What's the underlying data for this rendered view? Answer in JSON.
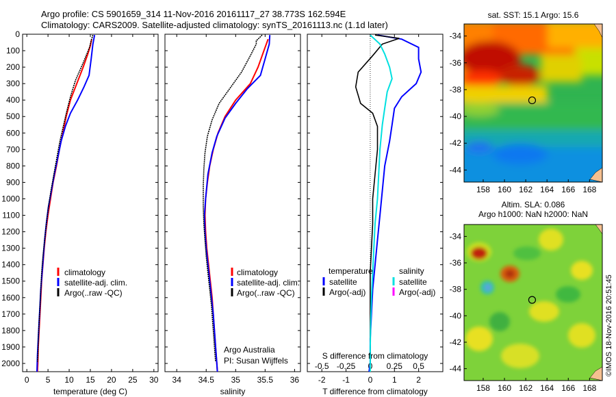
{
  "header": {
    "line1": "Argo profile: CS 5901659_314 11-Nov-2016 20161117_27 38.773S 162.594E",
    "line2": "Climatology: CARS2009. Satellite-adjusted climatology: synTS_20161113.nc (1.1d later)"
  },
  "colors": {
    "climatology": "#ff0000",
    "satellite": "#0000ff",
    "argo": "#000000",
    "sat_salinity": "#00e0e0",
    "argo_salinity": "#ff00ff"
  },
  "credit": {
    "line1": "Argo Australia",
    "line2": "PI: Susan Wijffels"
  },
  "timestamp": "©IMOS 18-Nov-2016 20:51:45",
  "chart_data": [
    {
      "type": "line",
      "xlabel": "temperature (deg C)",
      "ylim": [
        0,
        2050
      ],
      "xlim": [
        -1,
        31
      ],
      "xticks": [
        0,
        5,
        10,
        15,
        20,
        25,
        30
      ],
      "yticks": [
        0,
        100,
        200,
        300,
        400,
        500,
        600,
        700,
        800,
        900,
        1000,
        1100,
        1200,
        1300,
        1400,
        1500,
        1600,
        1700,
        1800,
        1900,
        2000
      ],
      "legend": [
        "climatology",
        "satellite-adj. clim.",
        "Argo(..raw -QC)"
      ],
      "series": [
        {
          "name": "climatology",
          "color": "#ff0000",
          "points": [
            [
              15.3,
              30
            ],
            [
              15.0,
              70
            ],
            [
              14.4,
              120
            ],
            [
              13.3,
              200
            ],
            [
              11.8,
              300
            ],
            [
              10.3,
              400
            ],
            [
              9.3,
              500
            ],
            [
              8.5,
              600
            ],
            [
              7.7,
              700
            ],
            [
              7.0,
              800
            ],
            [
              6.2,
              900
            ],
            [
              5.6,
              1000
            ],
            [
              5.0,
              1100
            ],
            [
              4.5,
              1200
            ],
            [
              4.1,
              1300
            ],
            [
              3.8,
              1400
            ],
            [
              3.5,
              1500
            ],
            [
              3.3,
              1600
            ],
            [
              3.1,
              1700
            ],
            [
              2.9,
              1800
            ],
            [
              2.7,
              1900
            ],
            [
              2.6,
              2000
            ],
            [
              2.5,
              2050
            ]
          ]
        },
        {
          "name": "satellite-adj. clim.",
          "color": "#0000ff",
          "points": [
            [
              16.0,
              5
            ],
            [
              15.6,
              60
            ],
            [
              15.2,
              150
            ],
            [
              14.7,
              250
            ],
            [
              13.5,
              320
            ],
            [
              12.0,
              400
            ],
            [
              10.3,
              480
            ],
            [
              9.1,
              560
            ],
            [
              8.1,
              650
            ],
            [
              7.3,
              750
            ],
            [
              6.5,
              850
            ],
            [
              5.8,
              950
            ],
            [
              5.1,
              1050
            ],
            [
              4.6,
              1150
            ],
            [
              4.2,
              1250
            ],
            [
              3.9,
              1350
            ],
            [
              3.6,
              1450
            ],
            [
              3.3,
              1550
            ],
            [
              3.1,
              1650
            ],
            [
              2.9,
              1750
            ],
            [
              2.7,
              1850
            ],
            [
              2.5,
              1950
            ],
            [
              2.4,
              2050
            ]
          ]
        },
        {
          "name": "Argo(..raw -QC)",
          "color": "#000000",
          "points": [
            [
              15.6,
              5
            ],
            [
              15.2,
              40
            ],
            [
              14.8,
              80
            ],
            [
              13.2,
              180
            ],
            [
              11.5,
              280
            ],
            [
              10.3,
              380
            ],
            [
              9.4,
              470
            ],
            [
              8.6,
              560
            ],
            [
              7.8,
              650
            ],
            [
              7.1,
              750
            ],
            [
              6.4,
              850
            ],
            [
              5.7,
              950
            ],
            [
              5.1,
              1050
            ],
            [
              4.6,
              1150
            ],
            [
              4.2,
              1250
            ],
            [
              3.8,
              1350
            ],
            [
              3.5,
              1450
            ],
            [
              3.3,
              1550
            ],
            [
              3.1,
              1650
            ],
            [
              2.9,
              1750
            ],
            [
              2.7,
              1850
            ],
            [
              2.6,
              1950
            ],
            [
              2.5,
              1990
            ]
          ]
        }
      ]
    },
    {
      "type": "line",
      "xlabel": "salinity",
      "ylim": [
        0,
        2050
      ],
      "xlim": [
        33.8,
        36.1
      ],
      "xticks": [
        34,
        34.5,
        35,
        35.5,
        36
      ],
      "legend": [
        "climatology",
        "satellite-adj. clim.",
        "Argo(..raw -QC)"
      ],
      "series": [
        {
          "name": "climatology",
          "color": "#ff0000",
          "points": [
            [
              35.55,
              30
            ],
            [
              35.48,
              100
            ],
            [
              35.38,
              200
            ],
            [
              35.25,
              300
            ],
            [
              35.0,
              400
            ],
            [
              34.82,
              500
            ],
            [
              34.7,
              600
            ],
            [
              34.62,
              700
            ],
            [
              34.56,
              800
            ],
            [
              34.52,
              900
            ],
            [
              34.49,
              1000
            ],
            [
              34.48,
              1100
            ],
            [
              34.49,
              1200
            ],
            [
              34.51,
              1300
            ],
            [
              34.54,
              1400
            ],
            [
              34.57,
              1500
            ],
            [
              34.6,
              1600
            ],
            [
              34.62,
              1700
            ],
            [
              34.64,
              1800
            ],
            [
              34.66,
              1900
            ],
            [
              34.68,
              2000
            ],
            [
              34.69,
              2050
            ]
          ]
        },
        {
          "name": "satellite-adj. clim.",
          "color": "#0000ff",
          "points": [
            [
              35.58,
              5
            ],
            [
              35.57,
              60
            ],
            [
              35.5,
              150
            ],
            [
              35.42,
              250
            ],
            [
              35.2,
              330
            ],
            [
              35.0,
              420
            ],
            [
              34.82,
              510
            ],
            [
              34.68,
              620
            ],
            [
              34.6,
              720
            ],
            [
              34.53,
              850
            ],
            [
              34.49,
              1000
            ],
            [
              34.47,
              1100
            ],
            [
              34.48,
              1200
            ],
            [
              34.5,
              1300
            ],
            [
              34.53,
              1400
            ],
            [
              34.56,
              1500
            ],
            [
              34.59,
              1600
            ],
            [
              34.62,
              1700
            ],
            [
              34.64,
              1800
            ],
            [
              34.66,
              1900
            ],
            [
              34.68,
              2000
            ],
            [
              34.69,
              2050
            ]
          ]
        },
        {
          "name": "Argo(..raw -QC)",
          "color": "#000000",
          "points": [
            [
              35.45,
              5
            ],
            [
              35.35,
              40
            ],
            [
              35.35,
              60
            ],
            [
              35.25,
              130
            ],
            [
              35.1,
              230
            ],
            [
              34.9,
              330
            ],
            [
              34.72,
              420
            ],
            [
              34.6,
              520
            ],
            [
              34.52,
              620
            ],
            [
              34.48,
              720
            ],
            [
              34.46,
              820
            ],
            [
              34.45,
              920
            ],
            [
              34.45,
              1050
            ],
            [
              34.46,
              1150
            ],
            [
              34.48,
              1250
            ],
            [
              34.5,
              1350
            ],
            [
              34.53,
              1450
            ],
            [
              34.56,
              1550
            ],
            [
              34.59,
              1650
            ],
            [
              34.61,
              1750
            ],
            [
              34.63,
              1850
            ],
            [
              34.65,
              1950
            ],
            [
              34.66,
              1990
            ]
          ]
        }
      ]
    },
    {
      "type": "line",
      "xlabel": "T difference from climatology",
      "xlabel_top": "S difference from climatology",
      "ylim": [
        0,
        2050
      ],
      "xlim": [
        -2.6,
        3
      ],
      "xticks": [
        -2,
        -1,
        0,
        1,
        2
      ],
      "xticks_top": [
        "-0.5",
        "-0.25",
        "0",
        "0.25",
        "0.5"
      ],
      "legend_temperature_title": "temperature",
      "legend_salinity_title": "salinity",
      "legend_temperature": [
        "satellite",
        "Argo(-adj)"
      ],
      "legend_salinity": [
        "satellite",
        "Argo(-adj)"
      ],
      "series": [
        {
          "name": "temperature satellite",
          "color": "#0000ff",
          "points": [
            [
              0.3,
              5
            ],
            [
              1.3,
              30
            ],
            [
              2.0,
              80
            ],
            [
              2.0,
              150
            ],
            [
              2.1,
              230
            ],
            [
              1.9,
              300
            ],
            [
              1.3,
              380
            ],
            [
              1.0,
              450
            ],
            [
              0.9,
              550
            ],
            [
              0.8,
              650
            ],
            [
              0.6,
              800
            ],
            [
              0.5,
              950
            ],
            [
              0.4,
              1100
            ],
            [
              0.3,
              1250
            ],
            [
              0.2,
              1400
            ],
            [
              0.1,
              1550
            ],
            [
              0.05,
              1700
            ],
            [
              0.0,
              1850
            ],
            [
              0.0,
              2000
            ],
            [
              -0.05,
              2050
            ]
          ]
        },
        {
          "name": "temperature Argo(-adj)",
          "color": "#000000",
          "points": [
            [
              0.2,
              5
            ],
            [
              1.2,
              25
            ],
            [
              0.5,
              60
            ],
            [
              0.1,
              130
            ],
            [
              -0.5,
              230
            ],
            [
              -0.6,
              320
            ],
            [
              -0.4,
              420
            ],
            [
              0.1,
              480
            ],
            [
              0.3,
              560
            ],
            [
              0.3,
              700
            ],
            [
              0.2,
              850
            ],
            [
              0.1,
              1000
            ],
            [
              0.1,
              1150
            ],
            [
              0.05,
              1300
            ],
            [
              0.0,
              1450
            ],
            [
              0.0,
              1600
            ],
            [
              0.0,
              1750
            ],
            [
              0.0,
              1900
            ],
            [
              0.0,
              1990
            ]
          ]
        },
        {
          "name": "salinity satellite",
          "color": "#00e0e0",
          "points": [
            [
              0.0,
              5
            ],
            [
              0.4,
              60
            ],
            [
              0.6,
              120
            ],
            [
              0.8,
              200
            ],
            [
              0.9,
              270
            ],
            [
              0.7,
              350
            ],
            [
              0.6,
              450
            ],
            [
              0.5,
              550
            ],
            [
              0.4,
              700
            ],
            [
              0.35,
              850
            ],
            [
              0.3,
              1000
            ],
            [
              0.2,
              1150
            ],
            [
              0.15,
              1300
            ],
            [
              0.1,
              1450
            ],
            [
              0.05,
              1600
            ],
            [
              0.02,
              1750
            ],
            [
              0.0,
              1900
            ],
            [
              0.0,
              2050
            ]
          ]
        }
      ]
    },
    {
      "type": "heatmap",
      "title": "sat. SST: 15.1 Argo: 15.6",
      "xlim": [
        156.2,
        169.2
      ],
      "ylim": [
        -44.9,
        -33.1
      ],
      "xticks": [
        158,
        160,
        162,
        164,
        166,
        168
      ],
      "yticks": [
        -34,
        -36,
        -38,
        -40,
        -42,
        -44
      ],
      "marker": [
        162.6,
        -38.8
      ]
    },
    {
      "type": "heatmap",
      "title": "Altim. SLA: 0.086",
      "subtitle": "Argo h1000: NaN h2000: NaN",
      "xlim": [
        156.2,
        169.2
      ],
      "ylim": [
        -44.9,
        -33.1
      ],
      "xticks": [
        158,
        160,
        162,
        164,
        166,
        168
      ],
      "yticks": [
        -34,
        -36,
        -38,
        -40,
        -42,
        -44
      ],
      "marker": [
        162.6,
        -38.8
      ]
    }
  ]
}
